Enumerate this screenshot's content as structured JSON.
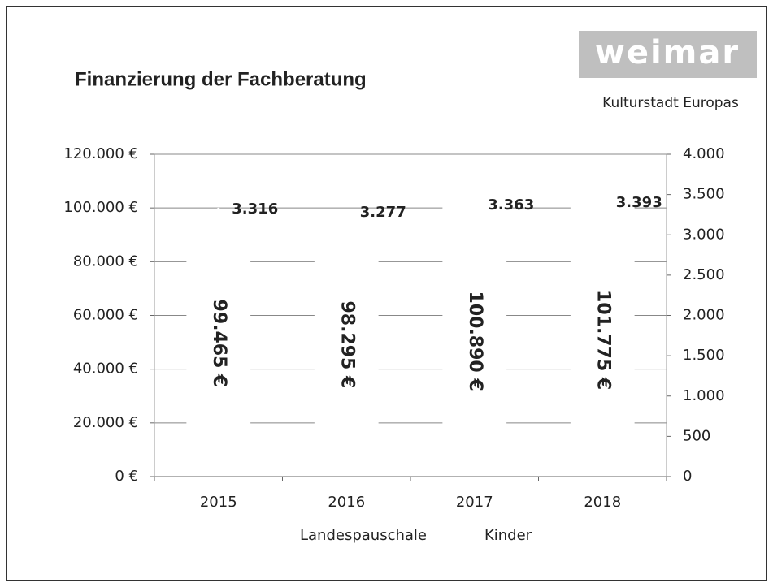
{
  "chart_data": {
    "type": "bar",
    "title": "Finanzierung der Fachberatung",
    "logo": {
      "text": "weimar",
      "subtitle": "Kulturstadt Europas"
    },
    "categories": [
      "2015",
      "2016",
      "2017",
      "2018"
    ],
    "series": [
      {
        "name": "Landespauschale",
        "color": "#ffffff",
        "values": [
          99465,
          98295,
          100890,
          101775
        ],
        "value_labels": [
          "99.465 €",
          "98.295 €",
          "100.890 €",
          "101.775 €"
        ]
      },
      {
        "name": "Kinder",
        "color": "#ffffff",
        "axis": "y2",
        "values": [
          3316,
          3277,
          3363,
          3393
        ],
        "value_labels": [
          "3.316",
          "3.277",
          "3.363",
          "3.393"
        ]
      }
    ],
    "ylim": [
      0,
      120000
    ],
    "yticks": [
      {
        "value": 0,
        "label": "0 €"
      },
      {
        "value": 20000,
        "label": "20.000 €"
      },
      {
        "value": 40000,
        "label": "40.000 €"
      },
      {
        "value": 60000,
        "label": "60.000 €"
      },
      {
        "value": 80000,
        "label": "80.000 €"
      },
      {
        "value": 100000,
        "label": "100.000 €"
      },
      {
        "value": 120000,
        "label": "120.000 €"
      }
    ],
    "y2lim": [
      0,
      4000
    ],
    "y2ticks": [
      0,
      500,
      {
        "value": 1000,
        "label": "1.000"
      },
      {
        "value": 1500,
        "label": "1.500"
      },
      {
        "value": 2000,
        "label": "2.000"
      },
      {
        "value": 2500,
        "label": "2.500"
      },
      {
        "value": 3000,
        "label": "3.000"
      },
      {
        "value": 3500,
        "label": "3.500"
      },
      {
        "value": 4000,
        "label": "4.000"
      }
    ],
    "grid": true
  }
}
